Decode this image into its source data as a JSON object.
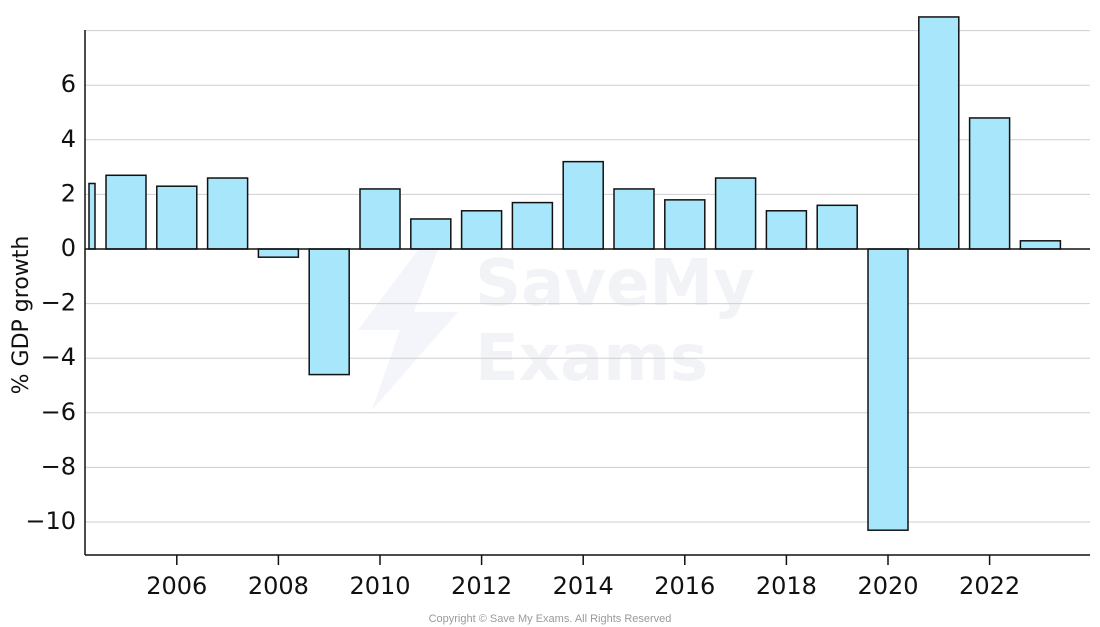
{
  "chart_data": {
    "type": "bar",
    "categories": [
      "2004",
      "2005",
      "2006",
      "2007",
      "2008",
      "2009",
      "2010",
      "2011",
      "2012",
      "2013",
      "2014",
      "2015",
      "2016",
      "2017",
      "2018",
      "2019",
      "2020",
      "2021",
      "2022",
      "2023"
    ],
    "values": [
      2.4,
      2.7,
      2.3,
      2.6,
      -0.3,
      -4.6,
      2.2,
      1.1,
      1.4,
      1.7,
      3.2,
      2.2,
      1.8,
      2.6,
      1.4,
      1.6,
      -10.3,
      8.5,
      4.8,
      0.3
    ],
    "title": "",
    "xlabel": "",
    "ylabel": "% GDP growth",
    "ylim": [
      -11.2,
      8
    ],
    "y_ticks": [
      "−10",
      "−8",
      "−6",
      "−4",
      "−2",
      "0",
      "2",
      "4",
      "6"
    ],
    "x_tick_labels": [
      "2006",
      "2008",
      "2010",
      "2012",
      "2014",
      "2016",
      "2018",
      "2020",
      "2022"
    ],
    "grid": true,
    "legend": "none",
    "bar_color": "#a8e6fb",
    "bar_edge_color": "#111111",
    "grid_color": "#cfcfcf"
  },
  "watermark": {
    "line1": "SaveMy",
    "line2": "Exams"
  },
  "copyright": "Copyright © Save My Exams. All Rights Reserved"
}
